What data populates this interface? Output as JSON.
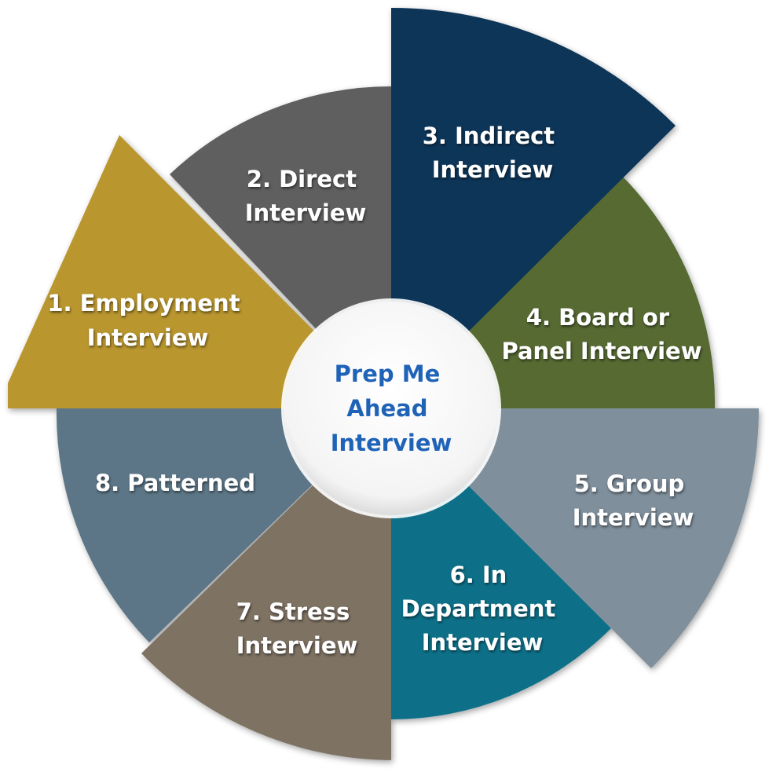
{
  "center": {
    "lines": [
      "Prep Me",
      "Ahead",
      "Interview"
    ],
    "color": "#1f63b8"
  },
  "segments": [
    {
      "id": "employment",
      "lines": [
        "1. Employment",
        "Interview"
      ],
      "color": "#b9962f"
    },
    {
      "id": "direct",
      "lines": [
        "2. Direct",
        "Interview"
      ],
      "color": "#5f5f5f"
    },
    {
      "id": "indirect",
      "lines": [
        "3. Indirect",
        "Interview"
      ],
      "color": "#0f3558"
    },
    {
      "id": "board-panel",
      "lines": [
        "4. Board or",
        "Panel Interview"
      ],
      "color": "#566b33"
    },
    {
      "id": "group",
      "lines": [
        "5. Group",
        "Interview"
      ],
      "color": "#7f8f9c"
    },
    {
      "id": "in-department",
      "lines": [
        "6. In",
        "Department",
        "Interview"
      ],
      "color": "#0f6f88"
    },
    {
      "id": "stress",
      "lines": [
        "7. Stress",
        "Interview"
      ],
      "color": "#7e7263"
    },
    {
      "id": "patterned",
      "lines": [
        "8. Patterned"
      ],
      "color": "#5b7687"
    }
  ]
}
